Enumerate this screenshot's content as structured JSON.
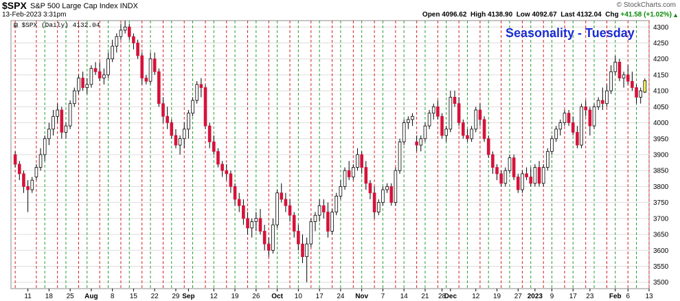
{
  "header": {
    "symbol": "$SPX",
    "description": "S&P 500 Large Cap Index  INDX",
    "timestamp": "13-Feb-2023 3:31pm",
    "brand": "© StockCharts.com",
    "quote": {
      "open_label": "Open",
      "open": "4096.62",
      "high_label": "High",
      "high": "4138.90",
      "low_label": "Low",
      "low": "4092.67",
      "last_label": "Last",
      "last": "4132.04",
      "chg_label": "Chg",
      "chg": "+41.58 (+1.02%)"
    }
  },
  "legend": "$SPX (Daily) 4132.04",
  "chart_data": {
    "type": "candlestick",
    "title": "Seasonality - Tuesday",
    "xlabel": "",
    "ylabel": "",
    "ylim": [
      3480,
      4320
    ],
    "yticks": [
      3500,
      3550,
      3600,
      3650,
      3700,
      3750,
      3800,
      3850,
      3900,
      3950,
      4000,
      4050,
      4100,
      4150,
      4200,
      4250,
      4300
    ],
    "xtick_labels": [
      {
        "i": 3,
        "label": "11"
      },
      {
        "i": 8,
        "label": "18"
      },
      {
        "i": 13,
        "label": "25"
      },
      {
        "i": 18,
        "label": "Aug"
      },
      {
        "i": 23,
        "label": "8"
      },
      {
        "i": 28,
        "label": "15"
      },
      {
        "i": 33,
        "label": "22"
      },
      {
        "i": 38,
        "label": "29"
      },
      {
        "i": 41,
        "label": "Sep"
      },
      {
        "i": 47,
        "label": "12"
      },
      {
        "i": 52,
        "label": "19"
      },
      {
        "i": 57,
        "label": "26"
      },
      {
        "i": 62,
        "label": "Oct"
      },
      {
        "i": 67,
        "label": "10"
      },
      {
        "i": 72,
        "label": "17"
      },
      {
        "i": 77,
        "label": "24"
      },
      {
        "i": 82,
        "label": "Nov"
      },
      {
        "i": 87,
        "label": "7"
      },
      {
        "i": 92,
        "label": "14"
      },
      {
        "i": 97,
        "label": "21"
      },
      {
        "i": 101,
        "label": "28"
      },
      {
        "i": 103,
        "label": "Dec"
      },
      {
        "i": 109,
        "label": "12"
      },
      {
        "i": 114,
        "label": "19"
      },
      {
        "i": 119,
        "label": "27"
      },
      {
        "i": 123,
        "label": "2023"
      },
      {
        "i": 127,
        "label": "9"
      },
      {
        "i": 132,
        "label": "17"
      },
      {
        "i": 136,
        "label": "23"
      },
      {
        "i": 142,
        "label": "Feb"
      },
      {
        "i": 145,
        "label": "6"
      },
      {
        "i": 150,
        "label": "13"
      }
    ],
    "green_lines": [
      7,
      12,
      17,
      22,
      27,
      32,
      37,
      42,
      47,
      52,
      57,
      62,
      67,
      72,
      77,
      82,
      87,
      92,
      97,
      102,
      107,
      112,
      117,
      122,
      127,
      132,
      137,
      142,
      147
    ],
    "red_lines": [
      0,
      5,
      10,
      15,
      20,
      25,
      30,
      35,
      40,
      45,
      50,
      55,
      60,
      65,
      70,
      75,
      80,
      85,
      90,
      95,
      100,
      105,
      110,
      115,
      120,
      125,
      130,
      135,
      140,
      145,
      150
    ],
    "colors": {
      "up_body": "#ffffff",
      "up_border": "#000000",
      "down": "#d6123a",
      "highlight": "#ffff66",
      "green_line": "#2e9a2e",
      "red_line": "#d81e1e",
      "grid": "#dddddd"
    },
    "candles": [
      [
        3900,
        3910,
        3860,
        3870
      ],
      [
        3870,
        3880,
        3820,
        3840
      ],
      [
        3840,
        3850,
        3780,
        3800
      ],
      [
        3800,
        3820,
        3720,
        3790
      ],
      [
        3790,
        3830,
        3780,
        3820
      ],
      [
        3830,
        3870,
        3820,
        3860
      ],
      [
        3860,
        3920,
        3850,
        3900
      ],
      [
        3900,
        3960,
        3880,
        3950
      ],
      [
        3950,
        4000,
        3930,
        3980
      ],
      [
        3980,
        4040,
        3960,
        4020
      ],
      [
        4020,
        4060,
        4000,
        4040
      ],
      [
        4040,
        4050,
        3950,
        3970
      ],
      [
        3970,
        4000,
        3950,
        3990
      ],
      [
        3990,
        4070,
        3980,
        4060
      ],
      [
        4060,
        4110,
        4050,
        4100
      ],
      [
        4100,
        4150,
        4090,
        4140
      ],
      [
        4140,
        4160,
        4100,
        4110
      ],
      [
        4110,
        4140,
        4090,
        4120
      ],
      [
        4120,
        4180,
        4110,
        4170
      ],
      [
        4170,
        4190,
        4150,
        4160
      ],
      [
        4160,
        4190,
        4130,
        4140
      ],
      [
        4140,
        4170,
        4120,
        4150
      ],
      [
        4150,
        4220,
        4140,
        4200
      ],
      [
        4200,
        4260,
        4190,
        4240
      ],
      [
        4240,
        4280,
        4220,
        4270
      ],
      [
        4270,
        4310,
        4260,
        4290
      ],
      [
        4290,
        4320,
        4280,
        4300
      ],
      [
        4300,
        4310,
        4260,
        4270
      ],
      [
        4270,
        4280,
        4230,
        4250
      ],
      [
        4250,
        4260,
        4200,
        4210
      ],
      [
        4210,
        4220,
        4120,
        4140
      ],
      [
        4140,
        4150,
        4120,
        4130
      ],
      [
        4130,
        4220,
        4120,
        4200
      ],
      [
        4200,
        4220,
        4150,
        4160
      ],
      [
        4160,
        4170,
        4050,
        4060
      ],
      [
        4060,
        4080,
        4000,
        4020
      ],
      [
        4020,
        4050,
        3980,
        4000
      ],
      [
        4000,
        4010,
        3950,
        3960
      ],
      [
        3960,
        3980,
        3920,
        3930
      ],
      [
        3930,
        3960,
        3900,
        3950
      ],
      [
        3950,
        4000,
        3920,
        3980
      ],
      [
        3980,
        4040,
        3950,
        4030
      ],
      [
        4030,
        4080,
        4020,
        4070
      ],
      [
        4070,
        4130,
        4060,
        4120
      ],
      [
        4120,
        4140,
        4080,
        4110
      ],
      [
        4110,
        4120,
        3980,
        3990
      ],
      [
        3990,
        4000,
        3920,
        3940
      ],
      [
        3940,
        3960,
        3900,
        3910
      ],
      [
        3910,
        3920,
        3860,
        3870
      ],
      [
        3870,
        3880,
        3830,
        3850
      ],
      [
        3850,
        3870,
        3820,
        3840
      ],
      [
        3840,
        3850,
        3780,
        3800
      ],
      [
        3800,
        3810,
        3740,
        3760
      ],
      [
        3760,
        3780,
        3720,
        3740
      ],
      [
        3740,
        3760,
        3680,
        3700
      ],
      [
        3700,
        3720,
        3650,
        3670
      ],
      [
        3670,
        3700,
        3640,
        3690
      ],
      [
        3690,
        3720,
        3660,
        3700
      ],
      [
        3700,
        3730,
        3650,
        3660
      ],
      [
        3660,
        3680,
        3600,
        3620
      ],
      [
        3620,
        3640,
        3580,
        3600
      ],
      [
        3600,
        3700,
        3590,
        3680
      ],
      [
        3680,
        3790,
        3670,
        3780
      ],
      [
        3780,
        3810,
        3750,
        3760
      ],
      [
        3760,
        3780,
        3720,
        3740
      ],
      [
        3740,
        3760,
        3690,
        3710
      ],
      [
        3710,
        3720,
        3640,
        3660
      ],
      [
        3660,
        3680,
        3600,
        3620
      ],
      [
        3620,
        3650,
        3560,
        3580
      ],
      [
        3580,
        3640,
        3500,
        3620
      ],
      [
        3620,
        3700,
        3610,
        3690
      ],
      [
        3690,
        3720,
        3660,
        3710
      ],
      [
        3710,
        3760,
        3690,
        3740
      ],
      [
        3740,
        3760,
        3700,
        3720
      ],
      [
        3720,
        3750,
        3640,
        3660
      ],
      [
        3660,
        3730,
        3650,
        3720
      ],
      [
        3720,
        3780,
        3710,
        3770
      ],
      [
        3770,
        3820,
        3760,
        3800
      ],
      [
        3800,
        3860,
        3790,
        3850
      ],
      [
        3850,
        3880,
        3820,
        3830
      ],
      [
        3830,
        3870,
        3820,
        3860
      ],
      [
        3860,
        3920,
        3850,
        3900
      ],
      [
        3900,
        3910,
        3840,
        3860
      ],
      [
        3860,
        3880,
        3790,
        3810
      ],
      [
        3810,
        3820,
        3760,
        3780
      ],
      [
        3780,
        3800,
        3700,
        3720
      ],
      [
        3720,
        3760,
        3710,
        3750
      ],
      [
        3750,
        3800,
        3740,
        3790
      ],
      [
        3790,
        3810,
        3780,
        3800
      ],
      [
        3800,
        3810,
        3740,
        3750
      ],
      [
        3750,
        3860,
        3740,
        3850
      ],
      [
        3850,
        3950,
        3840,
        3940
      ],
      [
        3940,
        4010,
        3930,
        4000
      ],
      [
        4000,
        4020,
        3980,
        4010
      ],
      [
        4010,
        4030,
        3990,
        4020
      ],
      [
        3940,
        3960,
        3910,
        3930
      ],
      [
        3930,
        3960,
        3910,
        3950
      ],
      [
        3950,
        4000,
        3940,
        3990
      ],
      [
        3990,
        4040,
        3980,
        4030
      ],
      [
        4030,
        4060,
        4010,
        4050
      ],
      [
        4050,
        4070,
        4010,
        4020
      ],
      [
        4020,
        4030,
        3950,
        3960
      ],
      [
        3960,
        3990,
        3940,
        3980
      ],
      [
        3980,
        4100,
        3970,
        4080
      ],
      [
        4080,
        4100,
        4050,
        4060
      ],
      [
        4060,
        4080,
        3990,
        4000
      ],
      [
        4000,
        4010,
        3950,
        3960
      ],
      [
        3960,
        3980,
        3940,
        3950
      ],
      [
        3950,
        3990,
        3940,
        3980
      ],
      [
        3980,
        4050,
        3970,
        4040
      ],
      [
        4040,
        4060,
        3990,
        4010
      ],
      [
        4010,
        4020,
        3940,
        3950
      ],
      [
        3950,
        3960,
        3890,
        3900
      ],
      [
        3900,
        3910,
        3840,
        3860
      ],
      [
        3860,
        3870,
        3820,
        3840
      ],
      [
        3840,
        3850,
        3800,
        3810
      ],
      [
        3810,
        3860,
        3800,
        3850
      ],
      [
        3850,
        3900,
        3840,
        3890
      ],
      [
        3890,
        3900,
        3820,
        3830
      ],
      [
        3830,
        3840,
        3780,
        3790
      ],
      [
        3790,
        3850,
        3780,
        3840
      ],
      [
        3840,
        3860,
        3820,
        3830
      ],
      [
        3830,
        3860,
        3800,
        3810
      ],
      [
        3810,
        3870,
        3800,
        3860
      ],
      [
        3860,
        3880,
        3800,
        3810
      ],
      [
        3810,
        3870,
        3800,
        3860
      ],
      [
        3860,
        3920,
        3850,
        3910
      ],
      [
        3910,
        3960,
        3900,
        3950
      ],
      [
        3950,
        3990,
        3940,
        3980
      ],
      [
        3980,
        4010,
        3960,
        4000
      ],
      [
        4000,
        4040,
        3990,
        4030
      ],
      [
        4030,
        4040,
        3990,
        4000
      ],
      [
        4000,
        4020,
        3960,
        3970
      ],
      [
        3970,
        3990,
        3920,
        3930
      ],
      [
        3930,
        4060,
        3920,
        4050
      ],
      [
        4050,
        4070,
        4020,
        4040
      ],
      [
        4040,
        4050,
        3960,
        3990
      ],
      [
        3990,
        4060,
        3980,
        4050
      ],
      [
        4050,
        4080,
        4040,
        4070
      ],
      [
        4070,
        4110,
        4040,
        4060
      ],
      [
        4060,
        4120,
        4050,
        4100
      ],
      [
        4100,
        4180,
        4090,
        4160
      ],
      [
        4160,
        4210,
        4150,
        4190
      ],
      [
        4190,
        4200,
        4130,
        4140
      ],
      [
        4140,
        4160,
        4110,
        4150
      ],
      [
        4150,
        4180,
        4120,
        4130
      ],
      [
        4130,
        4160,
        4100,
        4110
      ],
      [
        4110,
        4120,
        4060,
        4080
      ],
      [
        4080,
        4110,
        4060,
        4100
      ],
      [
        4096,
        4139,
        4093,
        4132
      ]
    ]
  }
}
